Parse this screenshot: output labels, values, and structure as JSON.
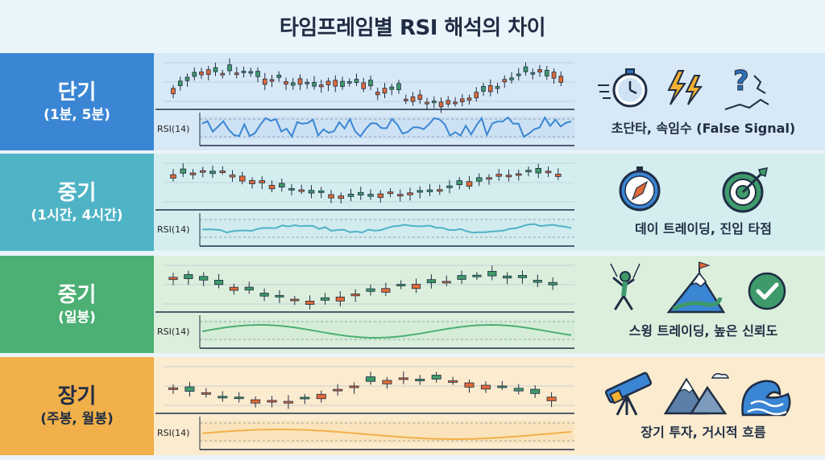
{
  "title": "타임프레임별 RSI 해석의 차이",
  "rsi_label": "RSI(14)",
  "colors": {
    "up": "#3e9a6a",
    "down": "#e06a37",
    "blue": "#3a86d4",
    "teal": "#4fb3c6",
    "green": "#4caf73",
    "orange": "#f2b04a"
  },
  "rows": [
    {
      "label": "단기",
      "sub": "(1분, 5분)",
      "caption": "초단타, 속임수 (False Signal)",
      "icons": [
        "stopwatch-icon",
        "lightning-icon",
        "question-crack-icon"
      ]
    },
    {
      "label": "중기",
      "sub": "(1시간, 4시간)",
      "caption": "데이 트레이딩, 진입 타점",
      "icons": [
        "compass-icon",
        "target-icon"
      ]
    },
    {
      "label": "중기",
      "sub": "(일봉)",
      "caption": "스윙 트레이딩, 높은 신뢰도",
      "icons": [
        "climber-icon",
        "mountain-flag-icon",
        "check-circle-icon"
      ]
    },
    {
      "label": "장기",
      "sub": "(주봉, 월봉)",
      "caption": "장기 투자, 거시적 흐름",
      "icons": [
        "telescope-icon",
        "mountains-icon",
        "wave-icon"
      ]
    }
  ]
}
